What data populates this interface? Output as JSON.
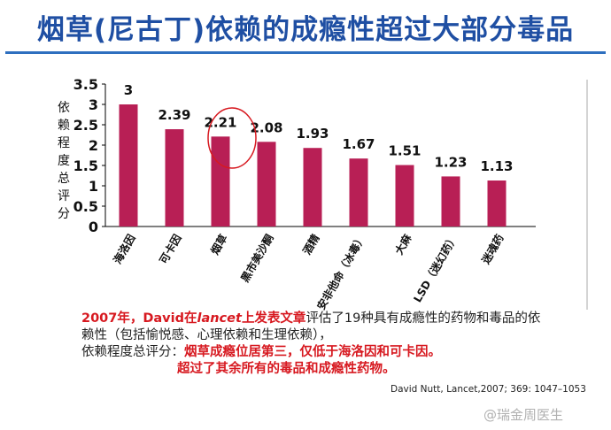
{
  "title": "烟草(尼古丁)依赖的成瘾性超过大部分毒品",
  "chart_data": {
    "type": "bar",
    "ylabel": "依赖程度总评分",
    "ylim": [
      0,
      3.5
    ],
    "yticks": [
      "0",
      "0.5",
      "1",
      "1.5",
      "2",
      "2.5",
      "3",
      "3.5"
    ],
    "categories": [
      "海洛因",
      "可卡因",
      "烟草",
      "黑市美沙酮",
      "酒精",
      "安非他命（冰毒）",
      "大麻",
      "LSD（迷幻药）",
      "迷魂药"
    ],
    "values": [
      3,
      2.39,
      2.21,
      2.08,
      1.93,
      1.67,
      1.51,
      1.23,
      1.13
    ],
    "value_labels": [
      "3",
      "2.39",
      "2.21",
      "2.08",
      "1.93",
      "1.67",
      "1.51",
      "1.23",
      "1.13"
    ],
    "highlighted_category": "烟草",
    "bar_color": "#b81f55",
    "highlight_color": "#d71920"
  },
  "text": {
    "year": "2007年，",
    "author": "David在",
    "journal": "lancet",
    "published": "上发表文章",
    "line1_rest": "评估了19种具有成瘾性的药物和毒品的依",
    "line2": "赖性（包括愉悦感、心理依赖和生理依赖），",
    "line3_label": "依赖程度总评分：",
    "line3_red": "烟草成瘾位居第三，仅低于海洛因和可卡因。",
    "line4_red": "超过了其余所有的毒品和成瘾性药物。"
  },
  "citation": "David Nutt, Lancet,2007; 369: 1047–1053",
  "watermark": "@瑞金周医生"
}
